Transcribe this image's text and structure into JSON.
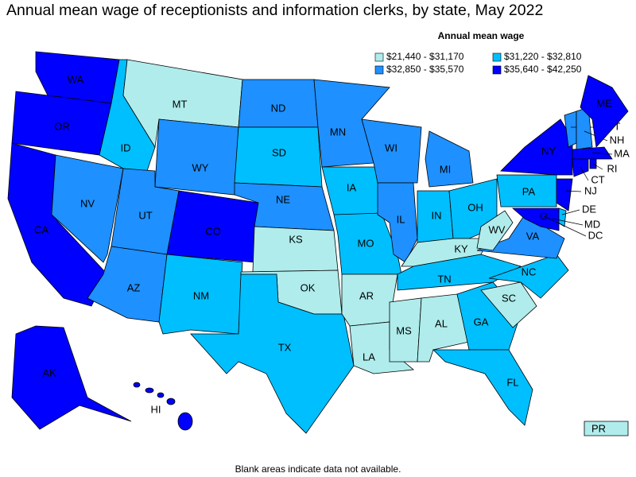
{
  "title": "Annual mean wage of receptionists and information clerks, by state, May 2022",
  "legend": {
    "title": "Annual mean wage",
    "bins": [
      {
        "label": "$21,440 - $31,170",
        "color": "#b0ecec"
      },
      {
        "label": "$31,220 - $32,810",
        "color": "#00bfff"
      },
      {
        "label": "$32,850 - $35,570",
        "color": "#1e90ff"
      },
      {
        "label": "$35,640 - $42,250",
        "color": "#0000ff"
      }
    ]
  },
  "states": [
    {
      "abbr": "WA",
      "bin": 3
    },
    {
      "abbr": "OR",
      "bin": 3
    },
    {
      "abbr": "CA",
      "bin": 3
    },
    {
      "abbr": "NV",
      "bin": 2
    },
    {
      "abbr": "ID",
      "bin": 1
    },
    {
      "abbr": "MT",
      "bin": 0
    },
    {
      "abbr": "WY",
      "bin": 2
    },
    {
      "abbr": "UT",
      "bin": 2
    },
    {
      "abbr": "AZ",
      "bin": 2
    },
    {
      "abbr": "CO",
      "bin": 3
    },
    {
      "abbr": "NM",
      "bin": 1
    },
    {
      "abbr": "ND",
      "bin": 2
    },
    {
      "abbr": "SD",
      "bin": 1
    },
    {
      "abbr": "NE",
      "bin": 2
    },
    {
      "abbr": "KS",
      "bin": 0
    },
    {
      "abbr": "OK",
      "bin": 0
    },
    {
      "abbr": "TX",
      "bin": 1
    },
    {
      "abbr": "MN",
      "bin": 2
    },
    {
      "abbr": "IA",
      "bin": 1
    },
    {
      "abbr": "MO",
      "bin": 1
    },
    {
      "abbr": "AR",
      "bin": 0
    },
    {
      "abbr": "LA",
      "bin": 0
    },
    {
      "abbr": "MS",
      "bin": 0
    },
    {
      "abbr": "AL",
      "bin": 0
    },
    {
      "abbr": "WI",
      "bin": 2
    },
    {
      "abbr": "IL",
      "bin": 2
    },
    {
      "abbr": "MI",
      "bin": 2
    },
    {
      "abbr": "IN",
      "bin": 1
    },
    {
      "abbr": "OH",
      "bin": 1
    },
    {
      "abbr": "KY",
      "bin": 0
    },
    {
      "abbr": "TN",
      "bin": 1
    },
    {
      "abbr": "GA",
      "bin": 1
    },
    {
      "abbr": "FL",
      "bin": 1
    },
    {
      "abbr": "SC",
      "bin": 0
    },
    {
      "abbr": "NC",
      "bin": 1
    },
    {
      "abbr": "VA",
      "bin": 2
    },
    {
      "abbr": "WV",
      "bin": 0
    },
    {
      "abbr": "PA",
      "bin": 1
    },
    {
      "abbr": "NY",
      "bin": 3
    },
    {
      "abbr": "NJ",
      "bin": 3
    },
    {
      "abbr": "DE",
      "bin": 1
    },
    {
      "abbr": "MD",
      "bin": 3
    },
    {
      "abbr": "DC",
      "bin": 3
    },
    {
      "abbr": "CT",
      "bin": 3
    },
    {
      "abbr": "RI",
      "bin": 3
    },
    {
      "abbr": "MA",
      "bin": 3
    },
    {
      "abbr": "VT",
      "bin": 2
    },
    {
      "abbr": "NH",
      "bin": 2
    },
    {
      "abbr": "ME",
      "bin": 3
    },
    {
      "abbr": "AK",
      "bin": 3
    },
    {
      "abbr": "HI",
      "bin": 3
    },
    {
      "abbr": "PR",
      "bin": 0
    }
  ],
  "footnote": "Blank areas indicate data not available."
}
